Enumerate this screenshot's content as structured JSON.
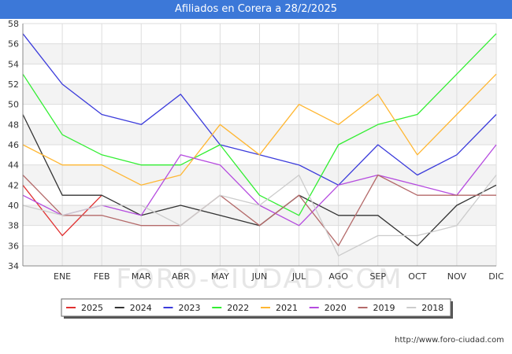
{
  "chart_data": {
    "type": "line",
    "title": "Afiliados en Corera a 28/2/2025",
    "categories": [
      "",
      "ENE",
      "FEB",
      "MAR",
      "ABR",
      "MAY",
      "JUN",
      "JUL",
      "AGO",
      "SEP",
      "OCT",
      "NOV",
      "DIC"
    ],
    "ylim": [
      34,
      58
    ],
    "yticks": [
      34,
      36,
      38,
      40,
      42,
      44,
      46,
      48,
      50,
      52,
      54,
      56,
      58
    ],
    "grid": true,
    "legend_position": "bottom",
    "series": [
      {
        "name": "2025",
        "color": "#e03131",
        "values": [
          42,
          37,
          41,
          null,
          null,
          null,
          null,
          null,
          null,
          null,
          null,
          null,
          null
        ]
      },
      {
        "name": "2024",
        "color": "#333333",
        "values": [
          49,
          41,
          41,
          39,
          40,
          39,
          38,
          41,
          39,
          39,
          36,
          40,
          42
        ]
      },
      {
        "name": "2023",
        "color": "#3b3bdb",
        "values": [
          57,
          52,
          49,
          48,
          51,
          46,
          45,
          44,
          42,
          46,
          43,
          45,
          49
        ]
      },
      {
        "name": "2022",
        "color": "#33ee33",
        "values": [
          53,
          47,
          45,
          44,
          44,
          46,
          41,
          39,
          46,
          48,
          49,
          53,
          57
        ]
      },
      {
        "name": "2021",
        "color": "#ffb733",
        "values": [
          46,
          44,
          44,
          42,
          43,
          48,
          45,
          50,
          48,
          51,
          45,
          49,
          53
        ]
      },
      {
        "name": "2020",
        "color": "#b54bdf",
        "values": [
          41,
          39,
          40,
          39,
          45,
          44,
          40,
          38,
          42,
          43,
          42,
          41,
          46
        ]
      },
      {
        "name": "2019",
        "color": "#b46a6a",
        "values": [
          43,
          39,
          39,
          38,
          38,
          41,
          38,
          41,
          36,
          43,
          41,
          41,
          41
        ]
      },
      {
        "name": "2018",
        "color": "#cccccc",
        "values": [
          40,
          39,
          40,
          40,
          38,
          41,
          40,
          43,
          35,
          37,
          37,
          38,
          43
        ]
      }
    ]
  },
  "footer": {
    "url": "http://www.foro-ciudad.com"
  },
  "watermark": {
    "text": "FORO-CIUDAD.COM"
  }
}
